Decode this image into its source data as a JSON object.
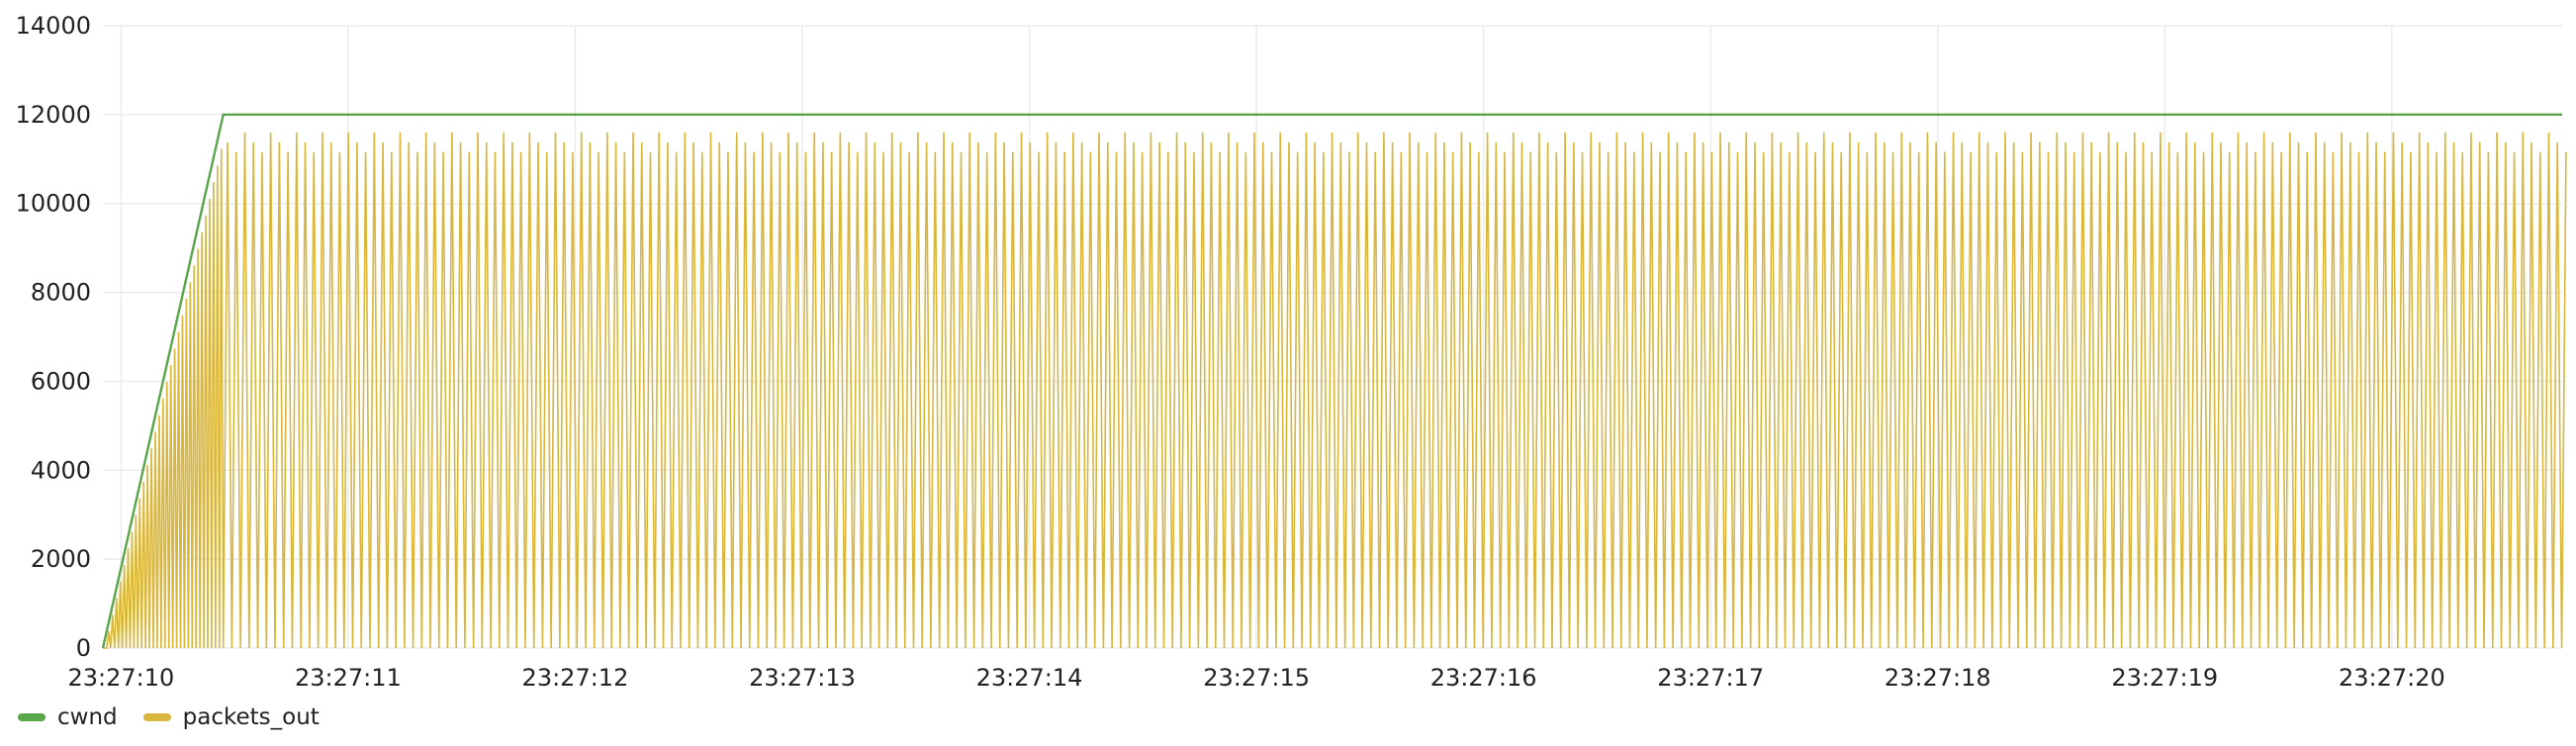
{
  "chart_data": {
    "type": "line",
    "title": "",
    "xlabel": "",
    "ylabel": "",
    "ylim": [
      0,
      14000
    ],
    "yticks": [
      0,
      2000,
      4000,
      6000,
      8000,
      10000,
      12000,
      14000
    ],
    "xlim": [
      "23:27:09.92",
      "23:27:20.75"
    ],
    "xticks": [
      "23:27:10",
      "23:27:11",
      "23:27:12",
      "23:27:13",
      "23:27:14",
      "23:27:15",
      "23:27:16",
      "23:27:17",
      "23:27:18",
      "23:27:19",
      "23:27:20"
    ],
    "grid": true,
    "legend_position": "bottom-left",
    "series": [
      {
        "name": "cwnd",
        "color": "#5aa64b",
        "points": [
          [
            "23:27:09.92",
            0
          ],
          [
            "23:27:10.45",
            12000
          ],
          [
            "23:27:20.75",
            12000
          ]
        ]
      },
      {
        "name": "packets_out",
        "color": "#d9b63c",
        "description_values": {
          "ramp": [
            [
              "23:27:09.92",
              0
            ],
            [
              "23:27:10.45",
              11600
            ]
          ],
          "steady_state_peak": 11600,
          "steady_state_trough": 0,
          "oscillation_period_s": 0.038
        }
      }
    ]
  },
  "legend": {
    "items": [
      {
        "label": "cwnd",
        "color": "#5aa64b"
      },
      {
        "label": "packets_out",
        "color": "#d9b63c"
      }
    ]
  }
}
